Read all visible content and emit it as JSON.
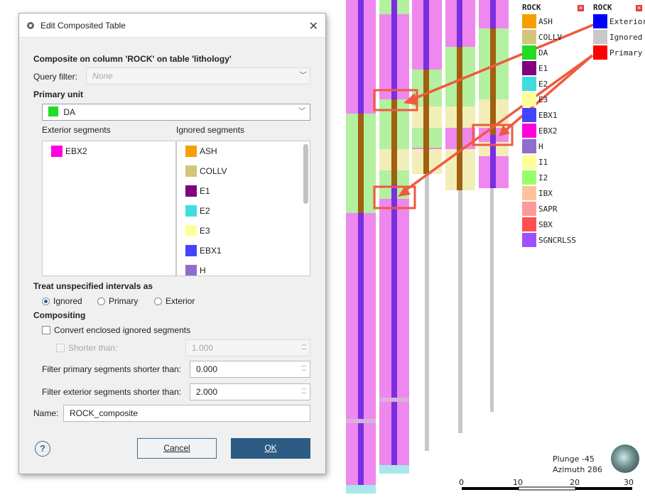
{
  "dialog": {
    "title": "Edit Composited Table",
    "composite_heading": "Composite on column 'ROCK' on table 'lithology'",
    "query_filter_label": "Query filter:",
    "query_filter_placeholder": "None",
    "primary_unit_label": "Primary unit",
    "primary_unit": {
      "name": "DA",
      "color": "#22dd22"
    },
    "exterior_segments_label": "Exterior segments",
    "ignored_segments_label": "Ignored segments",
    "exterior_segments": [
      {
        "name": "EBX2",
        "color": "#ff00dd"
      }
    ],
    "ignored_segments": [
      {
        "name": "ASH",
        "color": "#f5a000"
      },
      {
        "name": "COLLV",
        "color": "#d3c57a"
      },
      {
        "name": "E1",
        "color": "#800080"
      },
      {
        "name": "E2",
        "color": "#40dce0"
      },
      {
        "name": "E3",
        "color": "#ffff99"
      },
      {
        "name": "EBX1",
        "color": "#4444ff"
      },
      {
        "name": "H",
        "color": "#8f6ccf"
      }
    ],
    "treat_unspecified_label": "Treat unspecified intervals as",
    "radio_options": [
      "Ignored",
      "Primary",
      "Exterior"
    ],
    "radio_selected": "Ignored",
    "compositing_label": "Compositing",
    "convert_enclosed_label": "Convert enclosed ignored segments",
    "shorter_than_label": "Shorter than:",
    "shorter_than_value": "1.000",
    "filter_primary_label": "Filter primary segments shorter than:",
    "filter_primary_value": "0.000",
    "filter_exterior_label": "Filter exterior segments shorter than:",
    "filter_exterior_value": "2.000",
    "name_label": "Name:",
    "name_value": "ROCK_composite",
    "help_label": "?",
    "cancel_label": "Cancel",
    "ok_label": "OK"
  },
  "viewer": {
    "legend_rock": {
      "title": "ROCK",
      "items": [
        {
          "name": "ASH",
          "color": "#f5a000"
        },
        {
          "name": "COLLV",
          "color": "#d3c57a"
        },
        {
          "name": "DA",
          "color": "#22dd22"
        },
        {
          "name": "E1",
          "color": "#800080"
        },
        {
          "name": "E2",
          "color": "#40dce0"
        },
        {
          "name": "E3",
          "color": "#ffff99"
        },
        {
          "name": "EBX1",
          "color": "#4444ff"
        },
        {
          "name": "EBX2",
          "color": "#ff00dd"
        },
        {
          "name": "H",
          "color": "#8f6ccf"
        },
        {
          "name": "I1",
          "color": "#ffff99"
        },
        {
          "name": "I2",
          "color": "#99ff66"
        },
        {
          "name": "IBX",
          "color": "#ffc399"
        },
        {
          "name": "SAPR",
          "color": "#ff9999"
        },
        {
          "name": "SBX",
          "color": "#ff5050"
        },
        {
          "name": "SGNCRLSS",
          "color": "#a050ff"
        }
      ]
    },
    "legend_composite": {
      "title": "ROCK",
      "items": [
        {
          "name": "Exterior",
          "color": "#0000ff"
        },
        {
          "name": "Ignored",
          "color": "#c8c8c8"
        },
        {
          "name": "Primary",
          "color": "#ff0000"
        }
      ]
    },
    "plunge_label": "Plunge -45",
    "azimuth_label": "Azimuth 286",
    "scale_labels": [
      "0",
      "10",
      "20",
      "30"
    ]
  }
}
